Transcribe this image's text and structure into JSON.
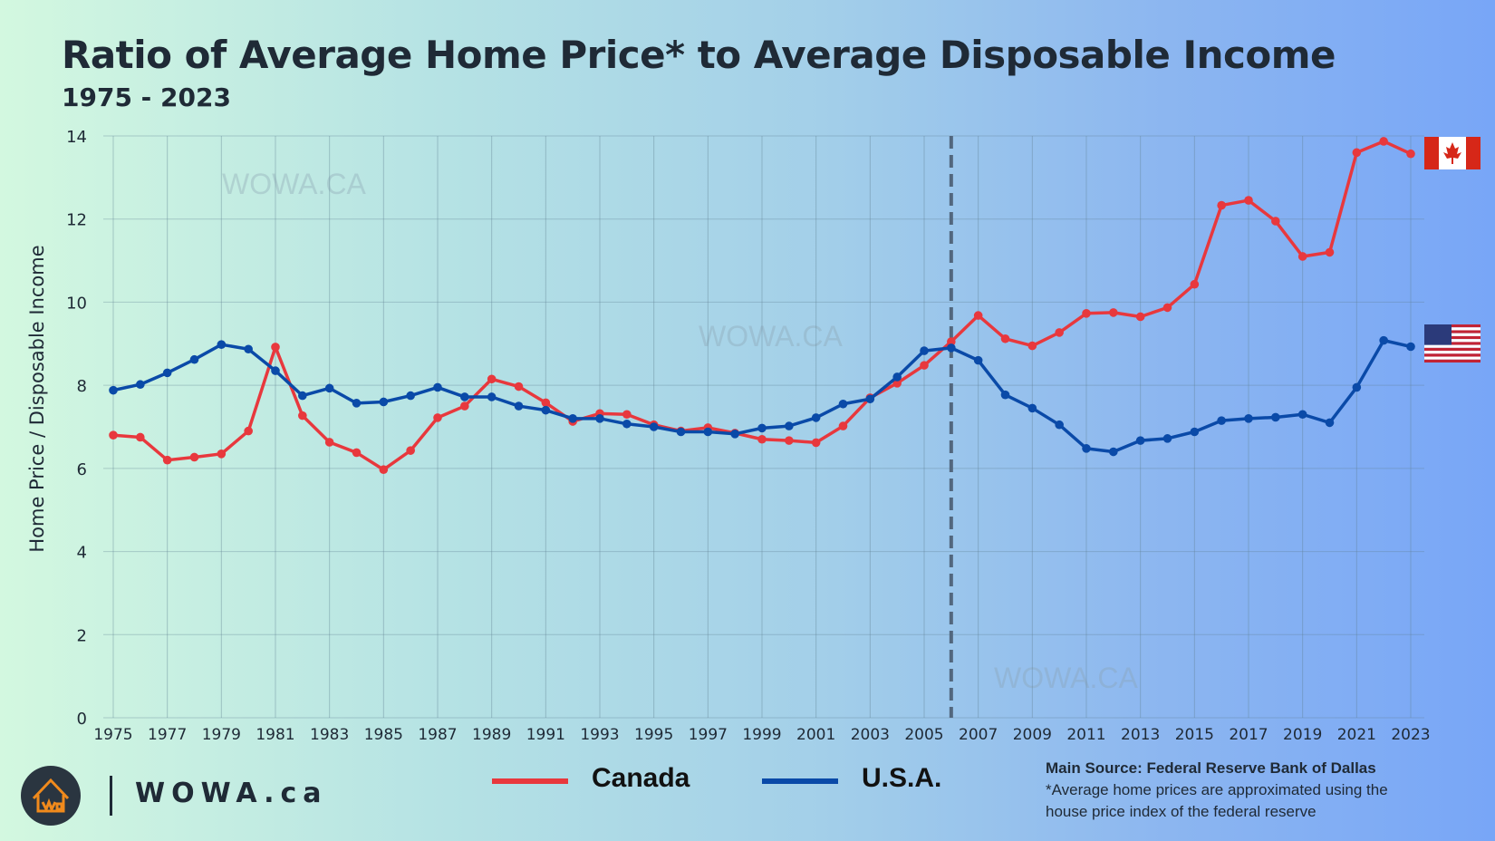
{
  "header": {
    "title": "Ratio of Average Home Price* to Average Disposable Income",
    "subtitle": "1975 - 2023"
  },
  "chart_data": {
    "type": "line",
    "ylabel": "Home Price  /  Disposable Income",
    "xlabel": "",
    "ylim": [
      0,
      14
    ],
    "yticks": [
      0,
      2,
      4,
      6,
      8,
      10,
      12,
      14
    ],
    "xlim": [
      1975,
      2023
    ],
    "xtick_labels": [
      "1975",
      "1977",
      "1979",
      "1981",
      "1983",
      "1985",
      "1987",
      "1989",
      "1991",
      "1993",
      "1995",
      "1997",
      "1999",
      "2001",
      "2003",
      "2005",
      "2007",
      "2009",
      "2011",
      "2013",
      "2015",
      "2017",
      "2019",
      "2021",
      "2023"
    ],
    "grid": true,
    "vertical_marker": {
      "x": 2006,
      "style": "dashed",
      "color": "#52677e"
    },
    "x": [
      1975,
      1976,
      1977,
      1978,
      1979,
      1980,
      1981,
      1982,
      1983,
      1984,
      1985,
      1986,
      1987,
      1988,
      1989,
      1990,
      1991,
      1992,
      1993,
      1994,
      1995,
      1996,
      1997,
      1998,
      1999,
      2000,
      2001,
      2002,
      2003,
      2004,
      2005,
      2006,
      2007,
      2008,
      2009,
      2010,
      2011,
      2012,
      2013,
      2014,
      2015,
      2016,
      2017,
      2018,
      2019,
      2020,
      2021,
      2022,
      2023
    ],
    "series": [
      {
        "name": "Canada",
        "color": "#e8383d",
        "flag": "canada-flag",
        "values": [
          6.8,
          6.75,
          6.2,
          6.27,
          6.35,
          6.9,
          8.92,
          7.27,
          6.63,
          6.38,
          5.97,
          6.43,
          7.22,
          7.5,
          8.15,
          7.97,
          7.58,
          7.13,
          7.32,
          7.3,
          7.05,
          6.9,
          6.98,
          6.85,
          6.7,
          6.67,
          6.62,
          7.02,
          7.7,
          8.05,
          8.48,
          9.05,
          9.68,
          9.12,
          8.95,
          9.27,
          9.73,
          9.75,
          9.65,
          9.87,
          10.43,
          12.33,
          12.45,
          11.95,
          11.1,
          11.2,
          13.6,
          13.87,
          13.57
        ]
      },
      {
        "name": "U.S.A.",
        "color": "#0a4aa8",
        "flag": "usa-flag",
        "values": [
          7.88,
          8.02,
          8.3,
          8.62,
          8.98,
          8.87,
          8.35,
          7.75,
          7.93,
          7.57,
          7.6,
          7.75,
          7.95,
          7.72,
          7.72,
          7.5,
          7.4,
          7.2,
          7.2,
          7.07,
          7.0,
          6.88,
          6.88,
          6.83,
          6.97,
          7.02,
          7.22,
          7.55,
          7.67,
          8.2,
          8.83,
          8.9,
          8.6,
          7.77,
          7.45,
          7.05,
          6.48,
          6.4,
          6.67,
          6.72,
          6.88,
          7.15,
          7.2,
          7.23,
          7.3,
          7.1,
          7.95,
          9.08,
          8.93
        ]
      }
    ],
    "legend": "bottom",
    "watermark": "WOWA.CA"
  },
  "footer": {
    "brand": "WOWA.ca",
    "source_title": "Main Source: Federal Reserve Bank of Dallas",
    "source_note_1": "*Average home prices are approximated using the",
    "source_note_2": "house price index of the federal reserve"
  }
}
